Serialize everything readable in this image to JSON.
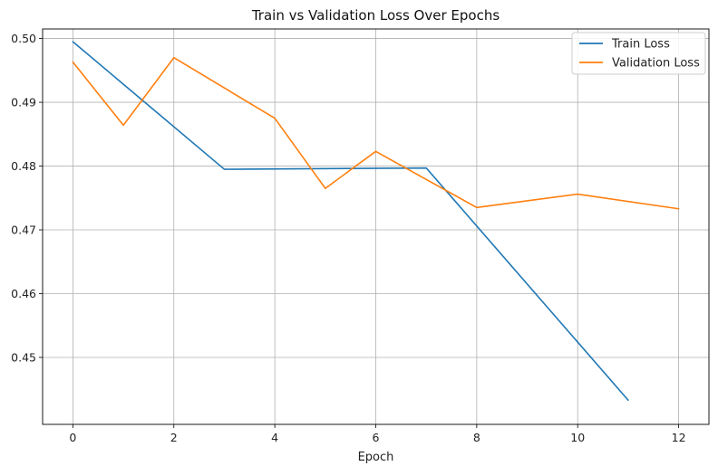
{
  "chart_data": {
    "type": "line",
    "title": "Train vs Validation Loss Over Epochs",
    "xlabel": "Epoch",
    "ylabel": "",
    "xlim": [
      -0.6,
      12.6
    ],
    "ylim": [
      0.4395,
      0.5015
    ],
    "xticks": [
      0,
      2,
      4,
      6,
      8,
      10,
      12
    ],
    "yticks": [
      0.45,
      0.46,
      0.47,
      0.48,
      0.49,
      0.5
    ],
    "xtick_labels": [
      "0",
      "2",
      "4",
      "6",
      "8",
      "10",
      "12"
    ],
    "ytick_labels": [
      "0.45",
      "0.46",
      "0.47",
      "0.48",
      "0.49",
      "0.50"
    ],
    "grid": true,
    "legend_position": "top-right",
    "series": [
      {
        "name": "Train Loss",
        "color": "#1f77b4",
        "x": [
          0,
          3,
          7,
          11
        ],
        "y": [
          0.4995,
          0.4795,
          0.4797,
          0.4433
        ]
      },
      {
        "name": "Validation Loss",
        "color": "#ff7f0e",
        "x": [
          0,
          1,
          2,
          4,
          5,
          6,
          8,
          10,
          12
        ],
        "y": [
          0.4963,
          0.4864,
          0.497,
          0.4875,
          0.4765,
          0.4823,
          0.4735,
          0.4756,
          0.4733
        ]
      }
    ]
  }
}
